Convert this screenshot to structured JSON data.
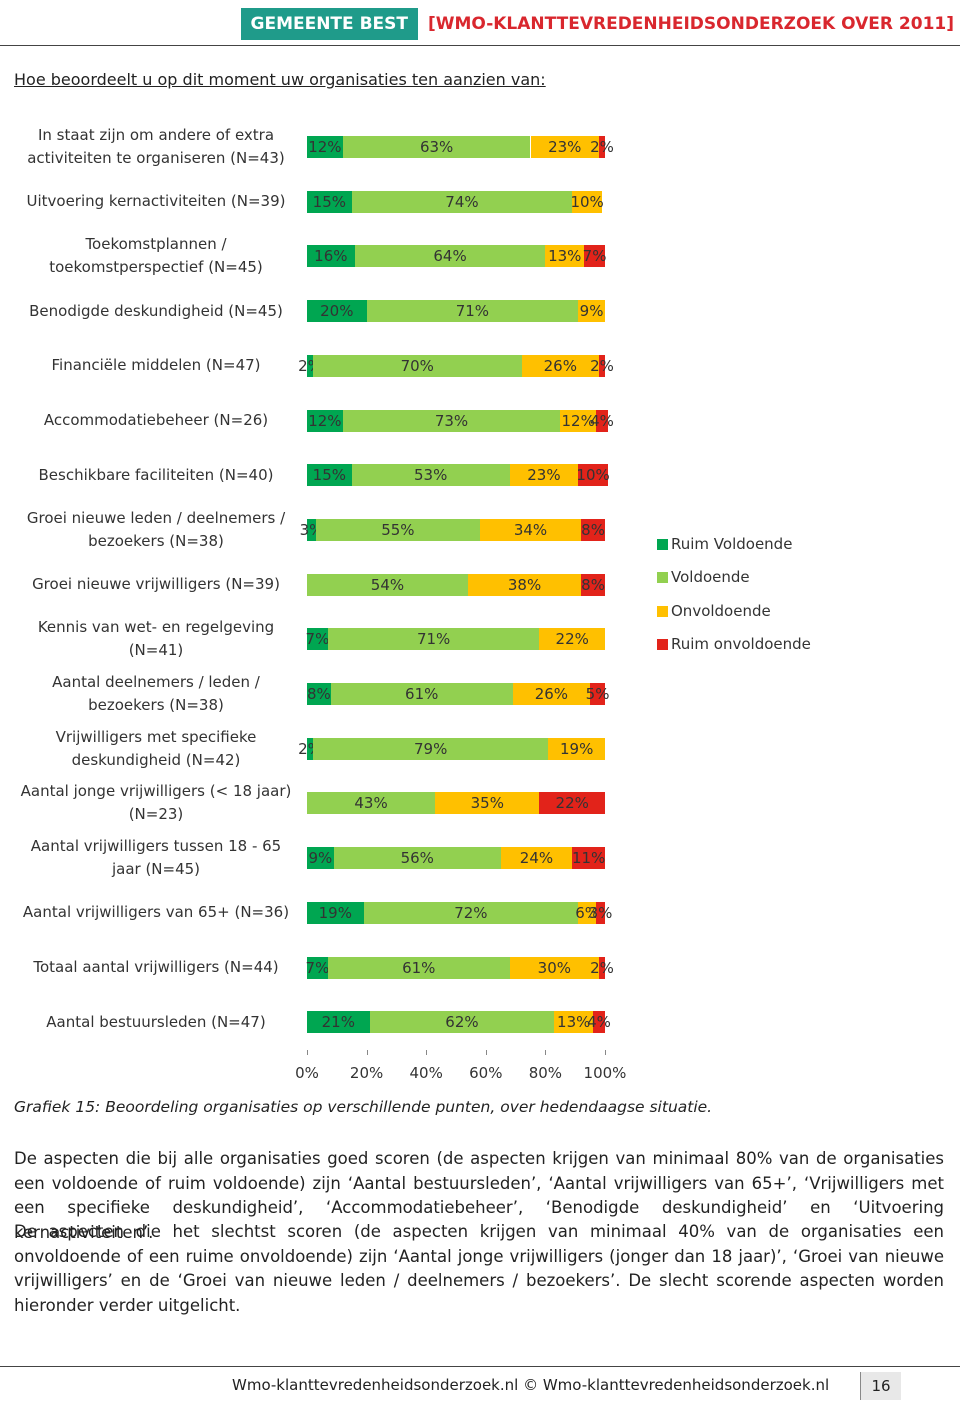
{
  "header": {
    "organisation": "GEMEENTE BEST",
    "title": "[WMO-KLANTTEVREDENHEIDSONDERZOEK OVER 2011]"
  },
  "question": "Hoe beoordeelt u op dit moment uw organisaties ten aanzien van:",
  "chart_data": {
    "type": "stacked-bar-horizontal",
    "categories": [
      "In staat zijn om andere of extra activiteiten te organiseren (N=43)",
      "Uitvoering kernactiviteiten (N=39)",
      "Toekomstplannen / toekomstperspectief (N=45)",
      "Benodigde deskundigheid (N=45)",
      "Financiële middelen (N=47)",
      "Accommodatiebeheer (N=26)",
      "Beschikbare faciliteiten (N=40)",
      "Groei nieuwe leden / deelnemers / bezoekers (N=38)",
      "Groei nieuwe vrijwilligers (N=39)",
      "Kennis van wet- en regelgeving (N=41)",
      "Aantal deelnemers / leden / bezoekers (N=38)",
      "Vrijwilligers met specifieke deskundigheid (N=42)",
      "Aantal jonge vrijwilligers (< 18 jaar) (N=23)",
      "Aantal vrijwilligers tussen 18 - 65 jaar (N=45)",
      "Aantal vrijwilligers van 65+ (N=36)",
      "Totaal aantal vrijwilligers (N=44)",
      "Aantal bestuursleden (N=47)"
    ],
    "series": [
      {
        "name": "Ruim Voldoende",
        "color": "#00a651",
        "values": [
          12,
          15,
          16,
          20,
          2,
          12,
          15,
          3,
          null,
          7,
          8,
          2,
          null,
          9,
          19,
          7,
          21
        ],
        "value_labels": [
          "12%",
          "15%",
          "16%",
          "20%",
          "2%",
          "12%",
          "15%",
          "3%",
          null,
          "7%",
          "8%",
          "2%",
          null,
          "9%",
          "19%",
          "7%",
          "21%"
        ]
      },
      {
        "name": "Voldoende",
        "color": "#92d050",
        "values": [
          63,
          74,
          64,
          71,
          70,
          73,
          53,
          55,
          54,
          71,
          61,
          79,
          43,
          56,
          72,
          61,
          62
        ],
        "value_labels": [
          "63%",
          "74%",
          "64%",
          "71%",
          "70%",
          "73%",
          "53%",
          "55%",
          "54%",
          "71%",
          "61%",
          "79%",
          "43%",
          "56%",
          "72%",
          "61%",
          "62%"
        ]
      },
      {
        "name": "Onvoldoende",
        "color": "#ffc000",
        "values": [
          23,
          10,
          13,
          9,
          26,
          12,
          23,
          34,
          38,
          22,
          26,
          19,
          35,
          24,
          6,
          30,
          13
        ],
        "value_labels": [
          "23%",
          "10%",
          "13%",
          "9%",
          "26%",
          "12%",
          "23%",
          "34%",
          "38%",
          "22%",
          "26%",
          "19%",
          "35%",
          "24%",
          "6%",
          "30%",
          "13%"
        ]
      },
      {
        "name": "Ruim onvoldoende",
        "color": "#e2231a",
        "values": [
          2,
          null,
          7,
          null,
          2,
          4,
          10,
          8,
          8,
          null,
          5,
          null,
          22,
          11,
          3,
          2,
          4
        ],
        "value_labels": [
          "2%",
          null,
          "7%",
          null,
          "2%",
          "4%",
          "10%",
          "8%",
          "8%",
          null,
          "5%",
          null,
          "22%",
          "11%",
          "3%",
          "2%",
          "4%"
        ]
      }
    ],
    "xlim": [
      0,
      100
    ],
    "xticks": [
      {
        "value": 0,
        "label": "0%"
      },
      {
        "value": 20,
        "label": "20%"
      },
      {
        "value": 40,
        "label": "40%"
      },
      {
        "value": 60,
        "label": "60%"
      },
      {
        "value": 80,
        "label": "80%"
      },
      {
        "value": 100,
        "label": "100%"
      }
    ],
    "legend": "right"
  },
  "caption": "Grafiek 15: Beoordeling organisaties op verschillende punten, over hedendaagse situatie.",
  "paragraphs": [
    "De aspecten die bij alle organisaties goed scoren (de aspecten krijgen van minimaal 80% van de organisaties een voldoende of ruim voldoende) zijn ‘Aantal bestuursleden’, ‘Aantal vrijwilligers van 65+’, ‘Vrijwilligers met een specifieke deskundigheid’, ‘Accommodatiebeheer’, ‘Benodigde deskundigheid’ en ‘Uitvoering kernactiviteiten’.",
    "De aspecten die het slechtst scoren (de aspecten krijgen van minimaal 40% van de organisaties een onvoldoende of een ruime onvoldoende) zijn ‘Aantal jonge vrijwilligers (jonger dan 18 jaar)’, ‘Groei van nieuwe vrijwilligers’ en de ‘Groei van nieuwe leden / deelnemers / bezoekers’. De slecht scorende aspecten worden hieronder verder uitgelicht."
  ],
  "footer": {
    "text": "Wmo-klanttevredenheidsonderzoek.nl © Wmo-klanttevredenheidsonderzoek.nl",
    "page": "16"
  }
}
